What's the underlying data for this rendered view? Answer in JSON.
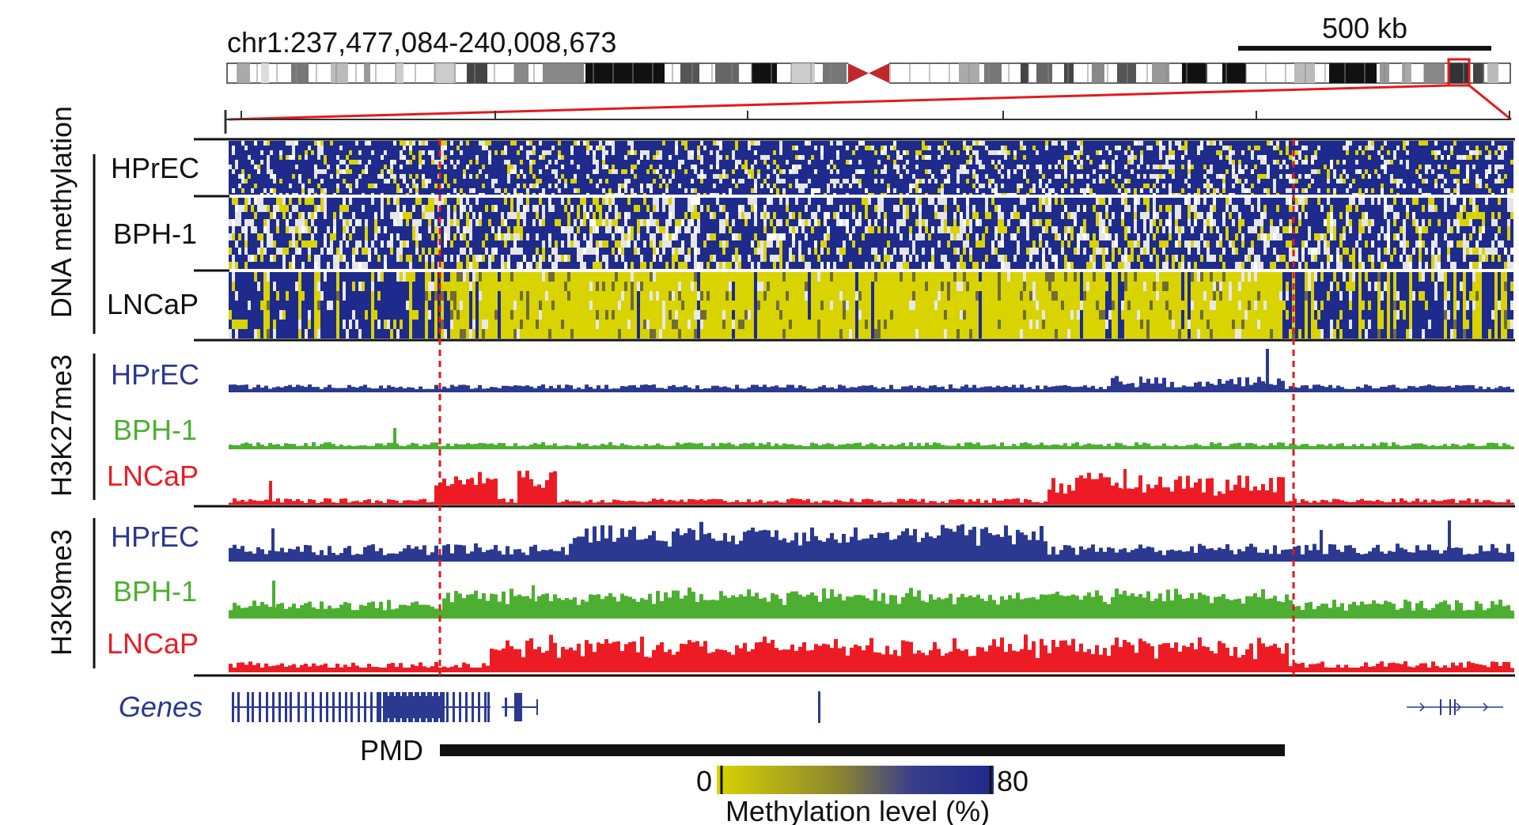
{
  "region": "chr1:237,477,084-240,008,673",
  "scale_bar_label": "500 kb",
  "groups": {
    "dna_methylation": "DNA methylation",
    "h3k27me3": "H3K27me3",
    "h3k9me3": "H3K9me3"
  },
  "samples": [
    "HPrEC",
    "BPH-1",
    "LNCaP"
  ],
  "genes_label": "Genes",
  "pmd_label": "PMD",
  "colorbar": {
    "min_label": "0",
    "max_label": "80",
    "title": "Methylation level (%)"
  },
  "colors": {
    "hprec": "#2b3990",
    "bph1": "#4daf32",
    "lncap": "#ed1c24",
    "methyl_low": "#d9d400",
    "methyl_high": "#1e2a8c",
    "highlight": "#e31a1c"
  },
  "pmd_boundaries_fraction_of_track": [
    0.165,
    0.826
  ]
}
